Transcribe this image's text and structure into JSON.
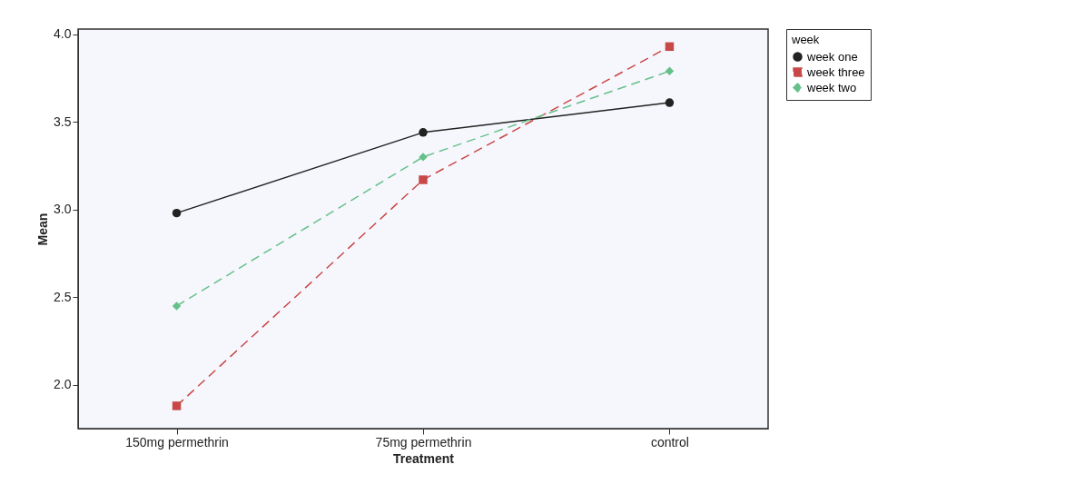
{
  "chart_data": {
    "type": "line",
    "xlabel": "Treatment",
    "ylabel": "Mean",
    "legend_title": "week",
    "categories": [
      "150mg permethrin",
      "75mg permethrin",
      "control"
    ],
    "series": [
      {
        "name": "week one",
        "color": "#222222",
        "marker": "circle",
        "line_style": "solid",
        "values": [
          2.98,
          3.44,
          3.61
        ]
      },
      {
        "name": "week three",
        "color": "#c84848",
        "marker": "square",
        "line_style": "dashed",
        "values": [
          1.88,
          3.17,
          3.93
        ]
      },
      {
        "name": "week two",
        "color": "#66c08a",
        "marker": "diamond",
        "line_style": "dashed",
        "values": [
          2.45,
          3.3,
          3.79
        ]
      }
    ],
    "ylim": [
      1.75,
      4.03
    ],
    "yticks": [
      {
        "value": 2,
        "label": "2.0"
      },
      2.5,
      {
        "value": 3,
        "label": "3.0"
      },
      3.5,
      {
        "value": 4,
        "label": "4.0"
      }
    ],
    "grid": false,
    "legend": "top right"
  }
}
